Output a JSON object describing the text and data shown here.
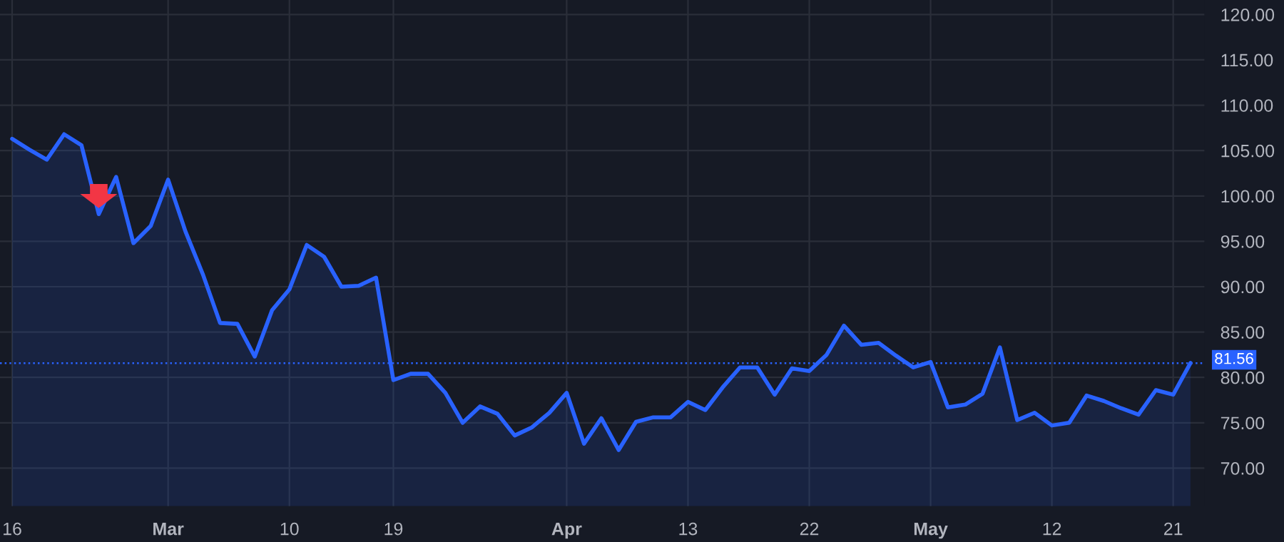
{
  "chart_data": {
    "type": "area",
    "categories": [
      "16",
      null,
      null,
      null,
      null,
      null,
      null,
      null,
      null,
      "Mar",
      null,
      null,
      null,
      null,
      null,
      null,
      "10",
      null,
      null,
      null,
      null,
      null,
      "19",
      null,
      null,
      null,
      null,
      null,
      null,
      null,
      null,
      null,
      "Apr",
      null,
      null,
      null,
      null,
      null,
      null,
      "13",
      null,
      null,
      null,
      null,
      null,
      null,
      "22",
      null,
      null,
      null,
      null,
      null,
      null,
      "May",
      null,
      null,
      null,
      null,
      null,
      null,
      "12",
      null,
      null,
      null,
      null,
      null,
      null,
      "21",
      null
    ],
    "series": [
      {
        "color": "#2962ff",
        "values": [
          106.3,
          105.1,
          104.0,
          106.8,
          105.6,
          98.0,
          102.1,
          94.8,
          96.7,
          101.8,
          96.1,
          91.4,
          86.0,
          85.9,
          82.3,
          87.4,
          89.7,
          94.6,
          93.3,
          90.0,
          90.1,
          91.0,
          79.7,
          80.4,
          80.4,
          78.3,
          75.0,
          76.8,
          76.0,
          73.6,
          74.5,
          76.1,
          78.3,
          72.7,
          75.5,
          72.0,
          75.1,
          75.6,
          75.6,
          77.3,
          76.4,
          78.9,
          81.1,
          81.1,
          78.1,
          81.0,
          80.7,
          82.5,
          85.7,
          83.6,
          83.8,
          82.4,
          81.1,
          81.7,
          76.7,
          77.0,
          78.2,
          83.3,
          75.3,
          76.1,
          74.7,
          75.0,
          78.0,
          77.4,
          76.6,
          75.9,
          78.6,
          78.1,
          81.6
        ]
      }
    ],
    "ylim": [
      65.8,
      121.6
    ],
    "yticks": [
      {
        "value": 70,
        "label": "70.00"
      },
      {
        "value": 75,
        "label": "75.00"
      },
      {
        "value": 80,
        "label": "80.00"
      },
      {
        "value": 85,
        "label": "85.00"
      },
      {
        "value": 90,
        "label": "90.00"
      },
      {
        "value": 95,
        "label": "95.00"
      },
      {
        "value": 100,
        "label": "100.00"
      },
      {
        "value": 105,
        "label": "105.00"
      },
      {
        "value": 110,
        "label": "110.00"
      },
      {
        "value": 115,
        "label": "115.00"
      },
      {
        "value": 120,
        "label": "120.00"
      }
    ],
    "ref_lines": [
      {
        "axis": "y",
        "value": 81.56,
        "label": "81.56",
        "color": "#2962ff",
        "line_style": "dotted"
      }
    ],
    "grid": true,
    "marker": "none",
    "line_style": "solid"
  }
}
